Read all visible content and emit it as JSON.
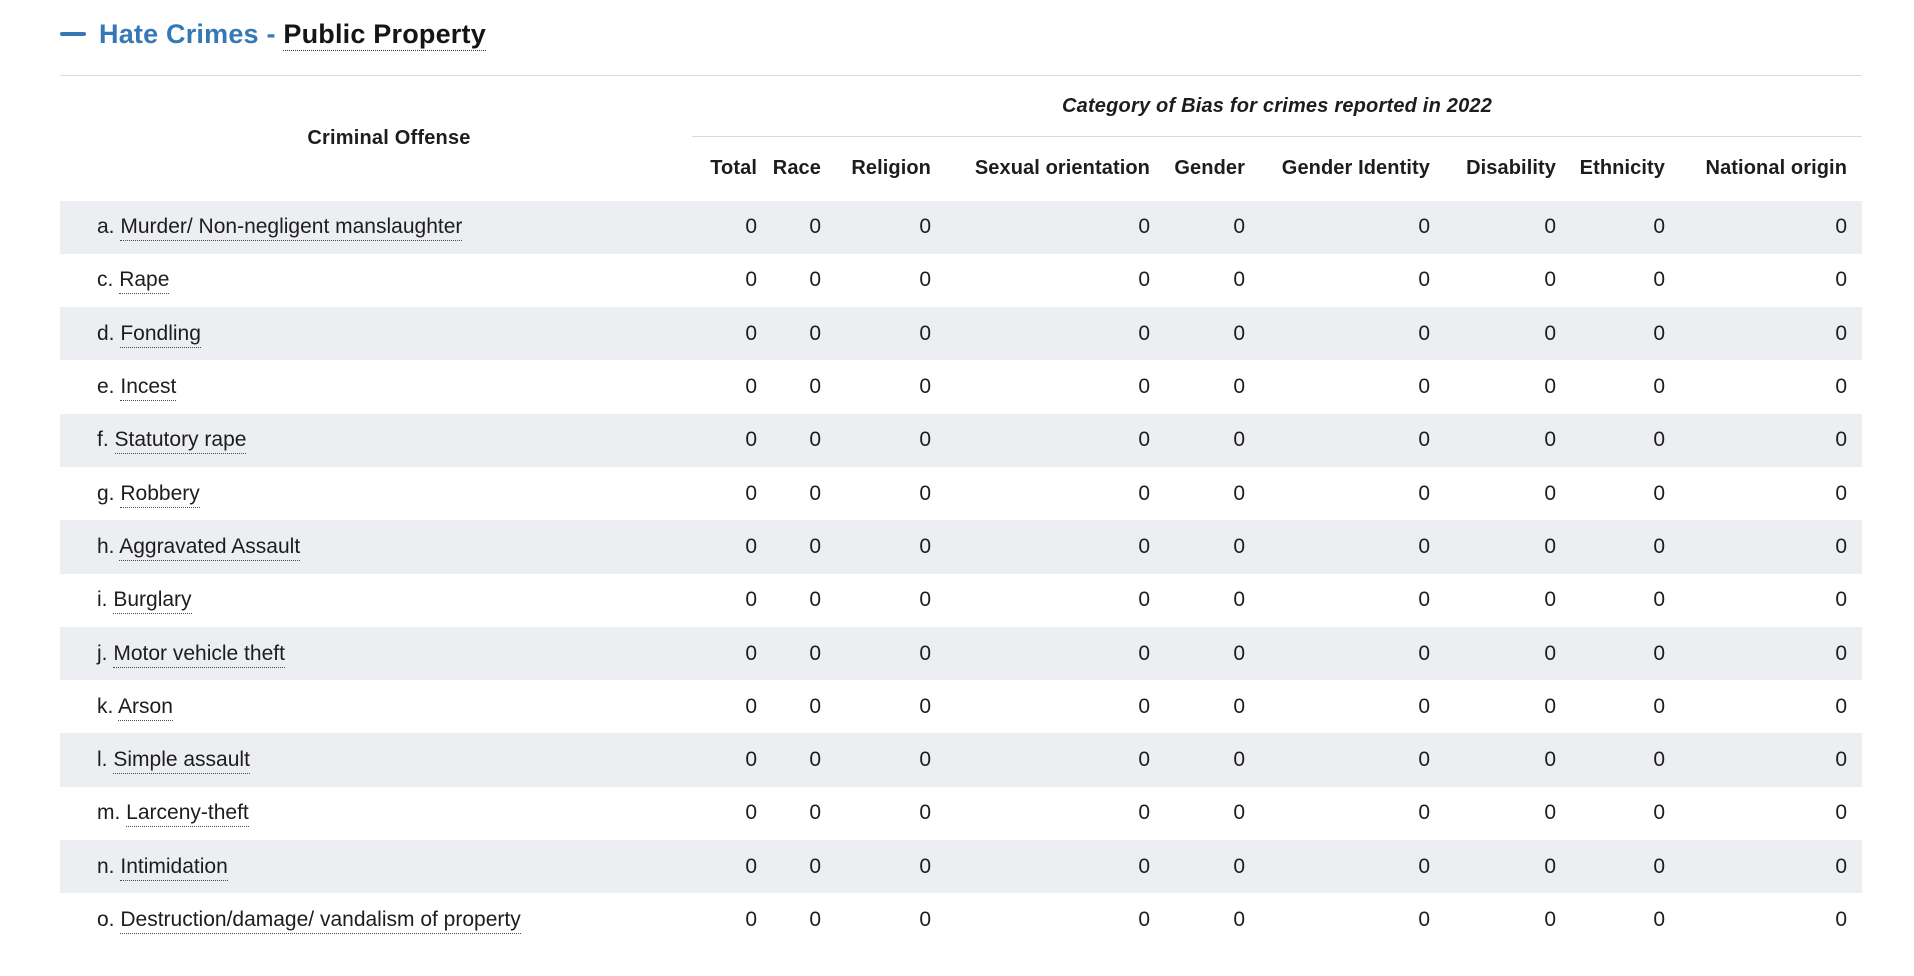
{
  "header": {
    "title_link": "Hate Crimes -",
    "title_term": "Public Property",
    "collapse_icon": "minus-icon"
  },
  "colors": {
    "accent_blue": "#3578b5",
    "row_stripe": "#eceef1",
    "divider": "#d8dade"
  },
  "table": {
    "offense_header": "Criminal Offense",
    "group_header": "Category of Bias for crimes reported in 2022",
    "columns": [
      "Total",
      "Race",
      "Religion",
      "Sexual orientation",
      "Gender",
      "Gender Identity",
      "Disability",
      "Ethnicity",
      "National origin"
    ],
    "rows": [
      {
        "prefix": "a.",
        "label": "Murder/ Non-negligent manslaughter",
        "values": [
          0,
          0,
          0,
          0,
          0,
          0,
          0,
          0,
          0
        ]
      },
      {
        "prefix": "c.",
        "label": "Rape",
        "values": [
          0,
          0,
          0,
          0,
          0,
          0,
          0,
          0,
          0
        ]
      },
      {
        "prefix": "d.",
        "label": "Fondling",
        "values": [
          0,
          0,
          0,
          0,
          0,
          0,
          0,
          0,
          0
        ]
      },
      {
        "prefix": "e.",
        "label": "Incest",
        "values": [
          0,
          0,
          0,
          0,
          0,
          0,
          0,
          0,
          0
        ]
      },
      {
        "prefix": "f.",
        "label": "Statutory rape",
        "values": [
          0,
          0,
          0,
          0,
          0,
          0,
          0,
          0,
          0
        ]
      },
      {
        "prefix": "g.",
        "label": "Robbery",
        "values": [
          0,
          0,
          0,
          0,
          0,
          0,
          0,
          0,
          0
        ]
      },
      {
        "prefix": "h.",
        "label": "Aggravated Assault",
        "values": [
          0,
          0,
          0,
          0,
          0,
          0,
          0,
          0,
          0
        ]
      },
      {
        "prefix": "i.",
        "label": "Burglary",
        "values": [
          0,
          0,
          0,
          0,
          0,
          0,
          0,
          0,
          0
        ]
      },
      {
        "prefix": "j.",
        "label": "Motor vehicle theft",
        "values": [
          0,
          0,
          0,
          0,
          0,
          0,
          0,
          0,
          0
        ]
      },
      {
        "prefix": "k.",
        "label": "Arson",
        "values": [
          0,
          0,
          0,
          0,
          0,
          0,
          0,
          0,
          0
        ]
      },
      {
        "prefix": "l.",
        "label": "Simple assault",
        "values": [
          0,
          0,
          0,
          0,
          0,
          0,
          0,
          0,
          0
        ]
      },
      {
        "prefix": "m.",
        "label": "Larceny-theft",
        "values": [
          0,
          0,
          0,
          0,
          0,
          0,
          0,
          0,
          0
        ]
      },
      {
        "prefix": "n.",
        "label": "Intimidation",
        "values": [
          0,
          0,
          0,
          0,
          0,
          0,
          0,
          0,
          0
        ]
      },
      {
        "prefix": "o.",
        "label": "Destruction/damage/ vandalism of property",
        "values": [
          0,
          0,
          0,
          0,
          0,
          0,
          0,
          0,
          0
        ]
      }
    ]
  }
}
